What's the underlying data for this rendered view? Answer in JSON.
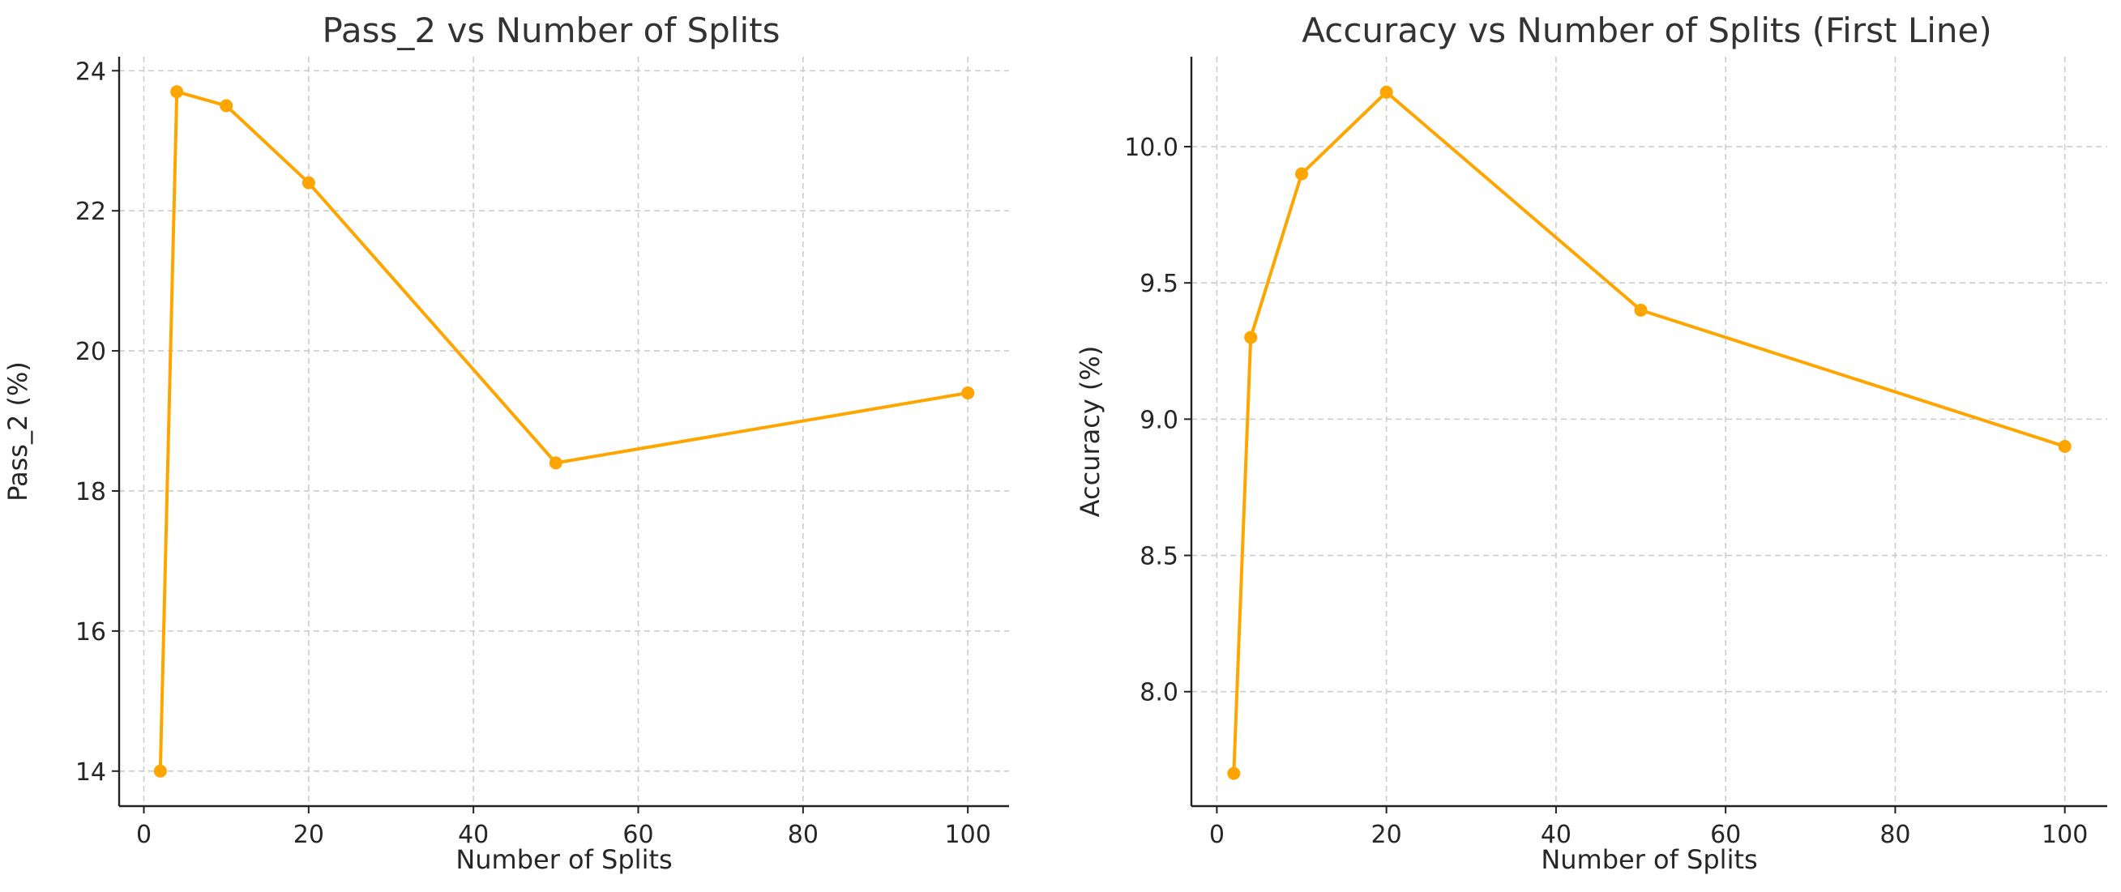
{
  "chart_data": [
    {
      "type": "line",
      "title": "Pass_2 vs Number of Splits",
      "xlabel": "Number of Splits",
      "ylabel": "Pass_2 (%)",
      "xlim": [
        -3,
        105
      ],
      "ylim": [
        13.5,
        24.2
      ],
      "xticks": [
        0,
        20,
        40,
        60,
        80,
        100
      ],
      "yticks": [
        14,
        16,
        18,
        20,
        22,
        24
      ],
      "grid": true,
      "series": [
        {
          "color": "#FFA500",
          "marker": "circle",
          "x": [
            2,
            4,
            10,
            20,
            50,
            100
          ],
          "y": [
            14.0,
            23.7,
            23.5,
            22.4,
            18.4,
            19.4
          ]
        }
      ]
    },
    {
      "type": "line",
      "title": "Accuracy vs Number of Splits (First Line)",
      "xlabel": "Number of Splits",
      "ylabel": "Accuracy (%)",
      "xlim": [
        -3,
        105
      ],
      "ylim": [
        7.58,
        10.33
      ],
      "xticks": [
        0,
        20,
        40,
        60,
        80,
        100
      ],
      "yticks": [
        8.0,
        8.5,
        9.0,
        9.5,
        10.0
      ],
      "grid": true,
      "series": [
        {
          "color": "#FFA500",
          "marker": "circle",
          "x": [
            2,
            4,
            10,
            20,
            50,
            100
          ],
          "y": [
            7.7,
            9.3,
            9.9,
            10.2,
            9.4,
            8.9
          ]
        }
      ]
    }
  ]
}
